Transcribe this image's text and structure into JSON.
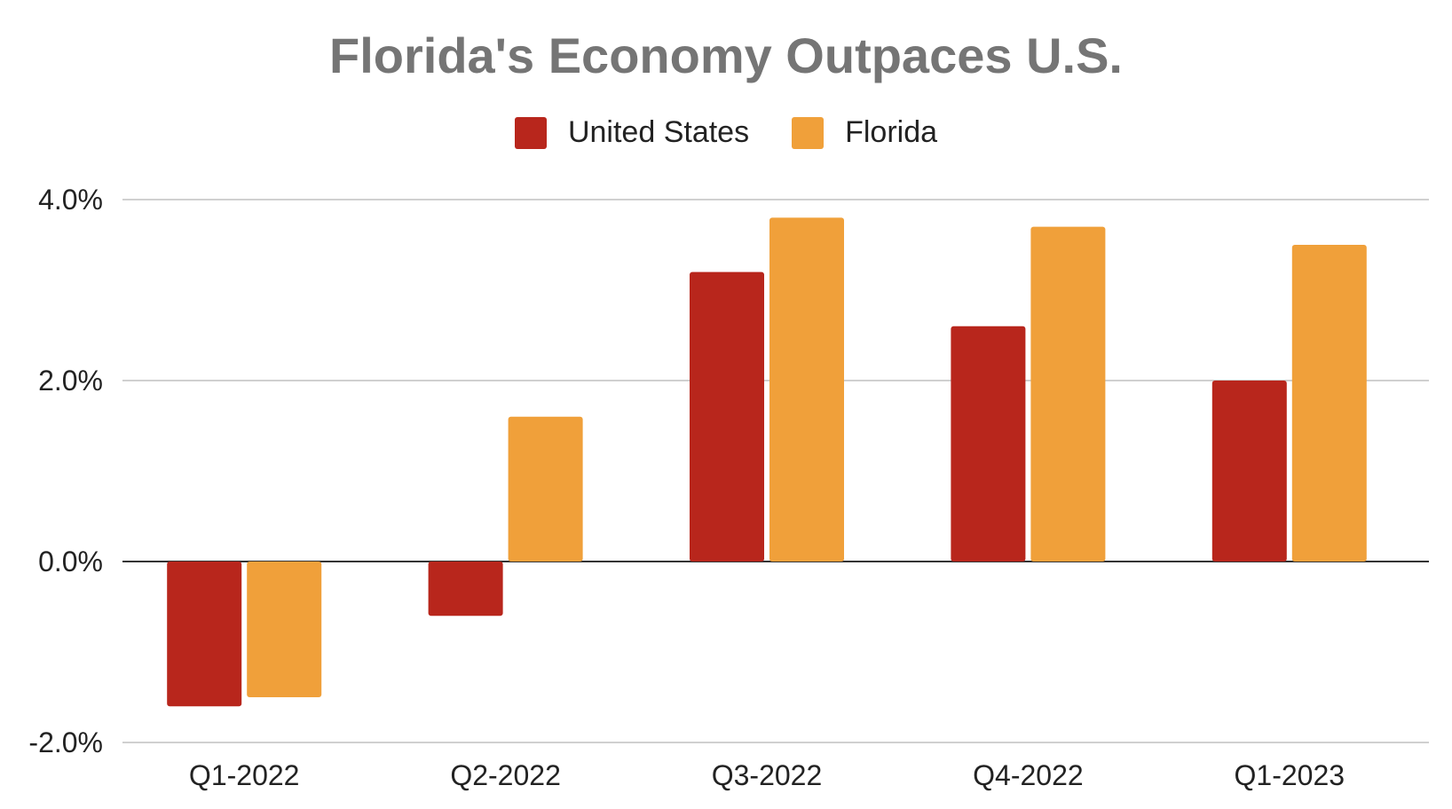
{
  "chart_data": {
    "type": "bar",
    "title": "Florida's Economy Outpaces U.S.",
    "categories": [
      "Q1-2022",
      "Q2-2022",
      "Q3-2022",
      "Q4-2022",
      "Q1-2023"
    ],
    "series": [
      {
        "name": "United States",
        "color": "#b8261c",
        "values": [
          -1.6,
          -0.6,
          3.2,
          2.6,
          2.0
        ]
      },
      {
        "name": "Florida",
        "color": "#f0a03a",
        "values": [
          -1.5,
          1.6,
          3.8,
          3.7,
          3.5
        ]
      }
    ],
    "ylim": [
      -2.0,
      4.0
    ],
    "yticks": [
      4.0,
      2.0,
      0.0,
      -2.0
    ],
    "ytick_labels": [
      "4.0%",
      "2.0%",
      "0.0%",
      "-2.0%"
    ],
    "xlabel": "",
    "ylabel": "",
    "grid": true,
    "legend_position": "top-center"
  }
}
